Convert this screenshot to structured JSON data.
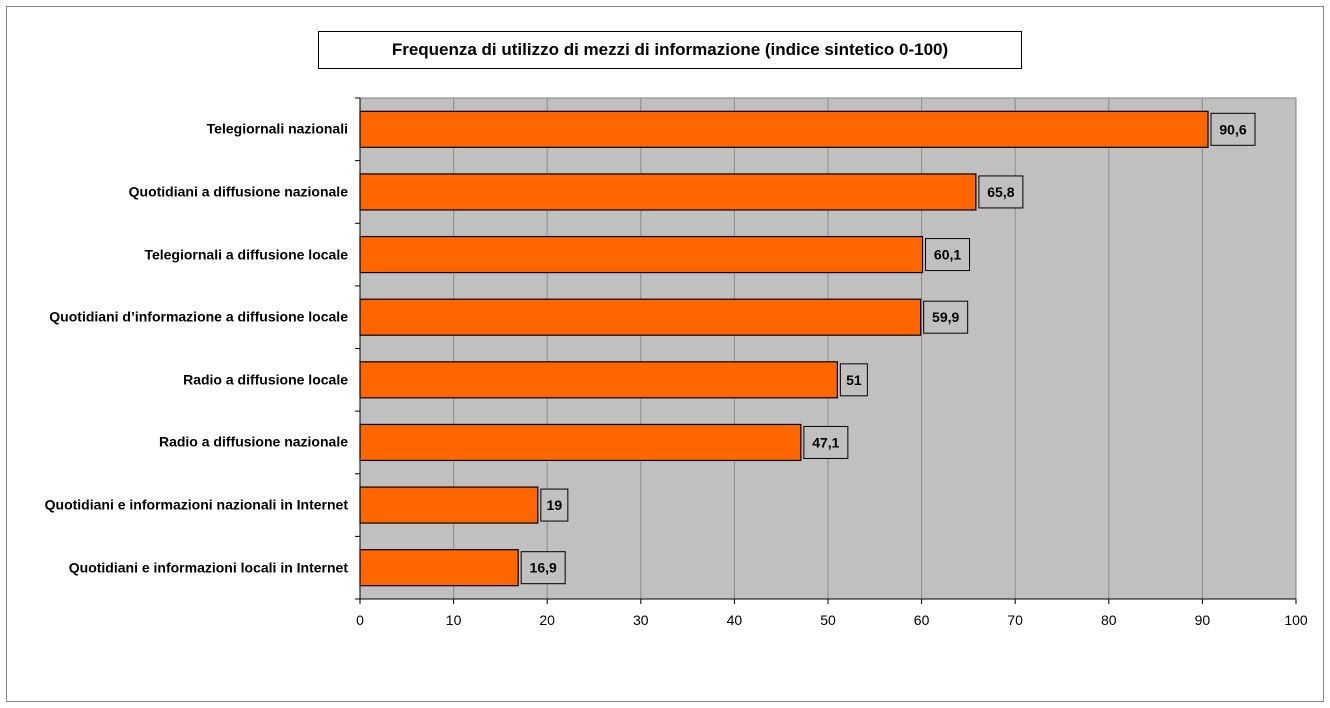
{
  "chart_data": {
    "type": "bar",
    "orientation": "horizontal",
    "title": "Frequenza di utilizzo di mezzi di informazione (indice sintetico 0-100)",
    "xlabel": "",
    "ylabel": "",
    "xlim": [
      0,
      100
    ],
    "ticks": [
      "0",
      "10",
      "20",
      "30",
      "40",
      "50",
      "60",
      "70",
      "80",
      "90",
      "100"
    ],
    "grid": true,
    "legend": "none",
    "categories": [
      "Telegiornali nazionali",
      "Quotidiani a diffusione nazionale",
      "Telegiornali a diffusione locale",
      "Quotidiani d’informazione a diffusione locale",
      "Radio a diffusione locale",
      "Radio a diffusione nazionale",
      "Quotidiani e informazioni nazionali in Internet",
      "Quotidiani e informazioni locali in Internet"
    ],
    "values": [
      90.6,
      65.8,
      60.1,
      59.9,
      51,
      47.1,
      19,
      16.9
    ],
    "value_labels": [
      "90,6",
      "65,8",
      "60,1",
      "59,9",
      "51",
      "47,1",
      "19",
      "16,9"
    ],
    "colors": {
      "bar": "#ff6600",
      "plot_background": "#c0c0c0",
      "label_background": "#c0c0c0"
    }
  }
}
